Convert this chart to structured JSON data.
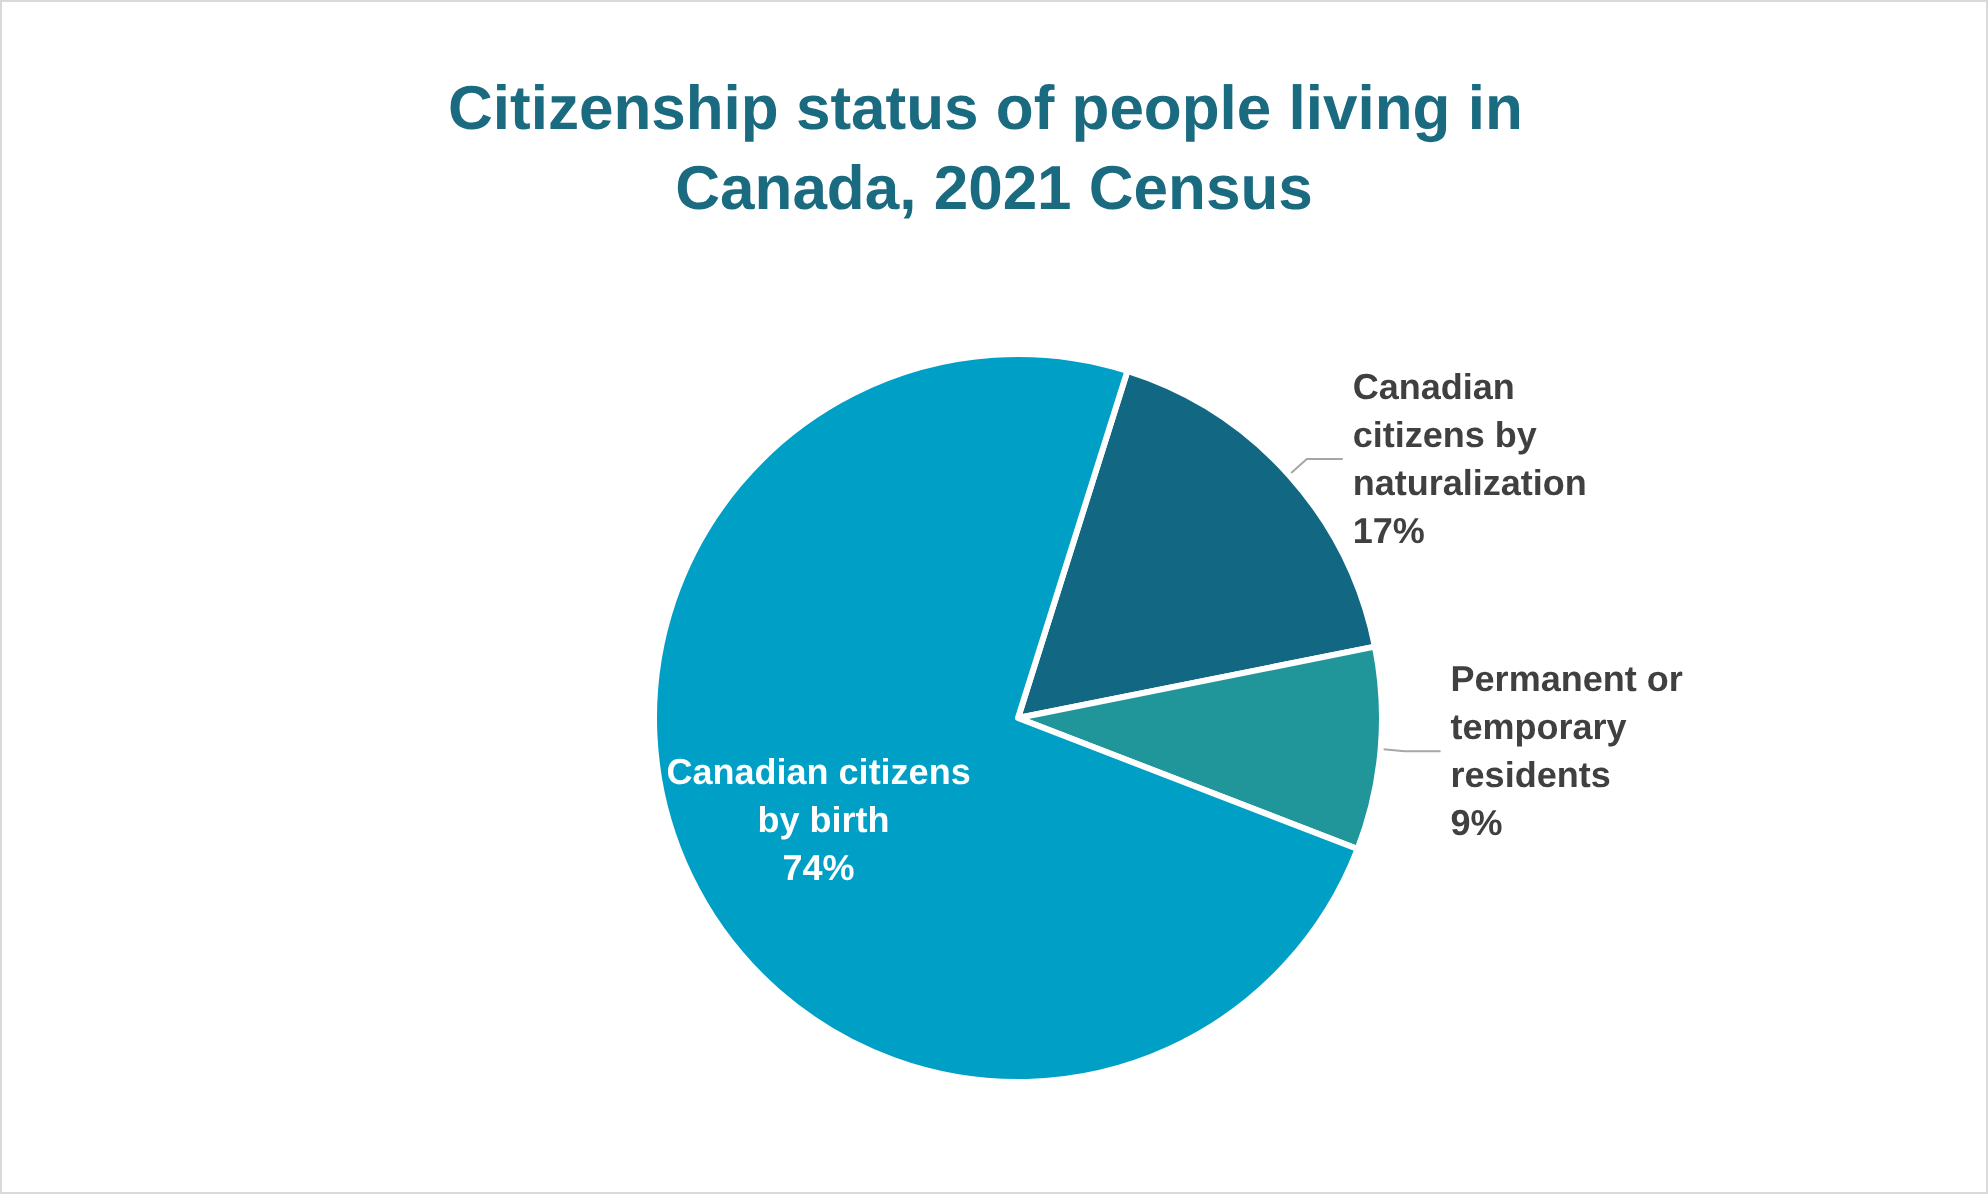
{
  "chart_data": {
    "type": "pie",
    "title": "Citizenship status of people living in Canada, 2021 Census",
    "categories": [
      "Canadian citizens by naturalization",
      "Permanent or temporary residents",
      "Canadian citizens by birth"
    ],
    "values": [
      17,
      9,
      74
    ],
    "colors": [
      "#126782",
      "#20969a",
      "#00a0c6"
    ],
    "value_labels": [
      "17%",
      "9%",
      "74%"
    ],
    "legend": false
  }
}
